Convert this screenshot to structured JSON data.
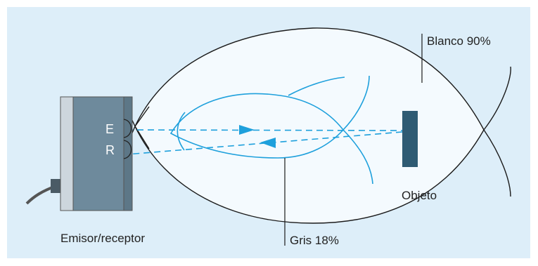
{
  "diagram": {
    "labels": {
      "white": "Blanco 90%",
      "gray": "Gris 18%",
      "object": "Objeto",
      "device": "Emisor/receptor",
      "emitter": "E",
      "receiver": "R"
    },
    "colors": {
      "background": "#ddeef9",
      "white_zone_fill": "#f4fafe",
      "curve": "#1ea0dc",
      "outline": "#1a1a1a",
      "device_body": "#6e8a9c",
      "device_face": "#cdd6dd",
      "object": "#2f5b73"
    }
  }
}
